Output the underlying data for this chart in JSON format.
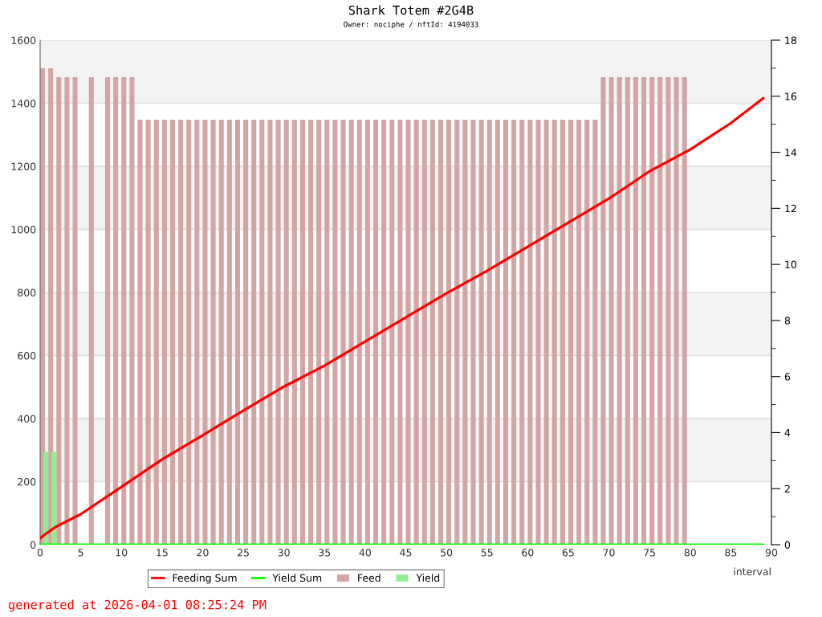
{
  "chart_data": {
    "type": "bar",
    "title": "Shark Totem #2G4B",
    "subtitle": "Owner: nociphe / nftId: 4194033",
    "xlabel": "interval",
    "annotations": [
      "generated at 2026-04-01 08:25:24 PM"
    ],
    "series": [
      {
        "name": "Feeding Sum",
        "type": "line",
        "axis": "y2",
        "color": "#ff0000",
        "x": [
          0,
          1,
          2,
          5,
          10,
          15,
          20,
          25,
          30,
          35,
          40,
          45,
          50,
          55,
          60,
          65,
          70,
          75,
          80,
          85,
          89
        ],
        "values": [
          0.23,
          0.45,
          0.65,
          1.09,
          2.06,
          3.04,
          3.9,
          4.78,
          5.64,
          6.39,
          7.25,
          8.11,
          8.97,
          9.77,
          10.63,
          11.49,
          12.35,
          13.32,
          14.1,
          15.04,
          15.93
        ]
      },
      {
        "name": "Yield Sum",
        "type": "line",
        "axis": "y2",
        "color": "#00ff00",
        "x": [
          0,
          89
        ],
        "values": [
          0,
          0
        ]
      },
      {
        "name": "Feed",
        "color": "#d4a5a5",
        "x": [
          0.3,
          1.3,
          2.3,
          3.3,
          4.3,
          5.3,
          6.3,
          7.3,
          8.3,
          9.3,
          10.3,
          11.3,
          12.3,
          13.3,
          14.3,
          15.3,
          16.3,
          17.3,
          18.3,
          19.3,
          20.3,
          21.3,
          22.3,
          23.3,
          24.3,
          25.3,
          26.3,
          27.3,
          28.3,
          29.3,
          30.3,
          31.3,
          32.3,
          33.3,
          34.3,
          35.3,
          36.3,
          37.3,
          38.3,
          39.3,
          40.3,
          41.3,
          42.3,
          43.3,
          44.3,
          45.3,
          46.3,
          47.3,
          48.3,
          49.3,
          50.3,
          51.3,
          52.3,
          53.3,
          54.3,
          55.3,
          56.3,
          57.3,
          58.3,
          59.3,
          60.3,
          61.3,
          62.3,
          63.3,
          64.3,
          65.3,
          66.3,
          67.3,
          68.3,
          69.3,
          70.3,
          71.3,
          72.3,
          73.3,
          74.3,
          75.3,
          76.3,
          77.3,
          78.3,
          79.3
        ],
        "values": [
          1511,
          1511,
          1483,
          1483,
          1483,
          null,
          1483,
          null,
          1483,
          1483,
          1483,
          1483,
          1348,
          1348,
          1348,
          1348,
          1348,
          1348,
          1348,
          1348,
          1348,
          1348,
          1348,
          1348,
          1348,
          1348,
          1348,
          1348,
          1348,
          1348,
          1348,
          1348,
          1348,
          1348,
          1348,
          1348,
          1348,
          1348,
          1348,
          1348,
          1348,
          1348,
          1348,
          1348,
          1348,
          1348,
          1348,
          1348,
          1348,
          1348,
          1348,
          1348,
          1348,
          1348,
          1348,
          1348,
          1348,
          1348,
          1348,
          1348,
          1348,
          1348,
          1348,
          1348,
          1348,
          1348,
          1348,
          1348,
          1348,
          1483,
          1483,
          1483,
          1483,
          1483,
          1483,
          1483,
          1483,
          1483,
          1483,
          1483
        ]
      },
      {
        "name": "Yield",
        "color": "#90ee90",
        "x": [
          0.7,
          1.7
        ],
        "values": [
          295,
          295
        ]
      }
    ],
    "xlim": [
      0,
      90
    ],
    "xticks": [
      0,
      5,
      10,
      15,
      20,
      25,
      30,
      35,
      40,
      45,
      50,
      55,
      60,
      65,
      70,
      75,
      80,
      85,
      90
    ],
    "ylim": [
      0,
      1600
    ],
    "yticks": [
      0,
      200,
      400,
      600,
      800,
      1000,
      1200,
      1400,
      1600
    ],
    "y2lim": [
      0,
      18
    ],
    "y2ticks": [
      0,
      2,
      4,
      6,
      8,
      10,
      12,
      14,
      16,
      18
    ],
    "bands": [
      {
        "axis": "y",
        "from": 200,
        "to": 400,
        "color": "#f3f3f3"
      },
      {
        "axis": "y",
        "from": 600,
        "to": 800,
        "color": "#f3f3f3"
      },
      {
        "axis": "y",
        "from": 1000,
        "to": 1200,
        "color": "#f3f3f3"
      },
      {
        "axis": "y",
        "from": 1400,
        "to": 1600,
        "color": "#f3f3f3"
      }
    ],
    "grid": "y",
    "legend": "bottom"
  }
}
